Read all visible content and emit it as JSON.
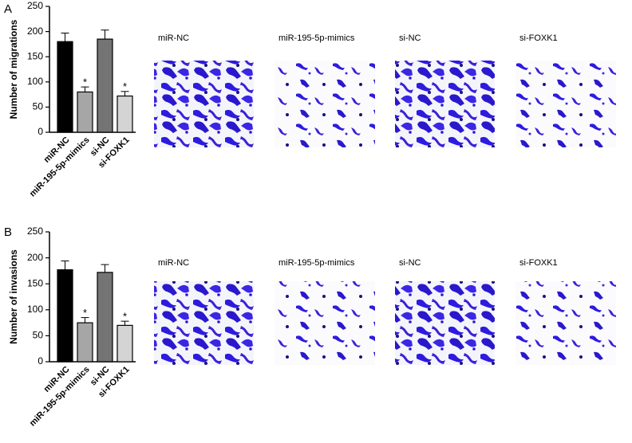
{
  "chart_data": [
    {
      "type": "bar",
      "y_label": "Number of migrations",
      "categories": [
        "miR-NC",
        "miR-195-5p-mimics",
        "si-NC",
        "si-FOXK1"
      ],
      "values": [
        180,
        80,
        185,
        72
      ],
      "errors": [
        17,
        10,
        18,
        9
      ],
      "significance": [
        null,
        "*",
        null,
        "*"
      ],
      "colors": [
        "#000000",
        "#a6a6a6",
        "#747474",
        "#d4d4d4"
      ],
      "ylim": [
        0,
        250
      ],
      "yticks": [
        0,
        50,
        100,
        150,
        200,
        250
      ]
    },
    {
      "type": "bar",
      "y_label": "Number of invasions",
      "categories": [
        "miR-NC",
        "miR-195-5p-mimics",
        "si-NC",
        "si-FOXK1"
      ],
      "values": [
        177,
        75,
        172,
        70
      ],
      "errors": [
        17,
        10,
        15,
        8
      ],
      "significance": [
        null,
        "*",
        null,
        "*"
      ],
      "colors": [
        "#000000",
        "#a6a6a6",
        "#747474",
        "#d4d4d4"
      ],
      "ylim": [
        0,
        250
      ],
      "yticks": [
        0,
        50,
        100,
        150,
        200,
        250
      ]
    }
  ],
  "figure": {
    "panels": [
      {
        "label": "A",
        "image_captions": [
          "miR-NC",
          "miR-195-5p-mimics",
          "si-NC",
          "si-FOXK1"
        ]
      },
      {
        "label": "B",
        "image_captions": [
          "miR-NC",
          "miR-195-5p-mimics",
          "si-NC",
          "si-FOXK1"
        ]
      }
    ]
  }
}
